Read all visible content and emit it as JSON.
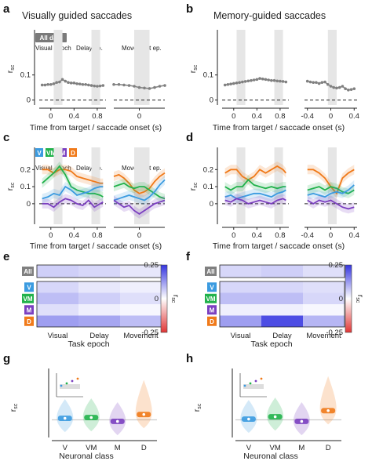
{
  "panels": {
    "a": {
      "letter": "a",
      "title": "Visually guided saccades"
    },
    "b": {
      "letter": "b",
      "title": "Memory-guided saccades"
    },
    "c": {
      "letter": "c"
    },
    "d": {
      "letter": "d"
    },
    "e": {
      "letter": "e"
    },
    "f": {
      "letter": "f"
    },
    "g": {
      "letter": "g"
    },
    "h": {
      "letter": "h"
    }
  },
  "labels": {
    "ylabel_rsc": "r",
    "ylabel_sub": "sc",
    "xlabel_time": "Time from target / saccade onset (s)",
    "xlabel_epoch": "Task epoch",
    "xlabel_class": "Neuronal class",
    "all_data": "All data",
    "visual_epoch": "Visual epoch",
    "delay_ep": "Delay ep.",
    "movement_ep": "Movement ep.",
    "colorbar_label": "r",
    "colorbar_sub": "sc",
    "colorbar_ticks": [
      "0.25",
      "0",
      "-0.25"
    ]
  },
  "colors": {
    "V": "#3b9be0",
    "VM": "#22b24c",
    "M": "#7b3fc0",
    "D": "#f07a1a",
    "All": "#808080",
    "epoch_shade": "#e6e6e6",
    "heat_pos": "#3535e0",
    "heat_neg": "#e03535"
  },
  "chart_data": [
    {
      "id": "a",
      "type": "line",
      "title": "Visually guided saccades",
      "xlabel": "Time from target / saccade onset (s)",
      "ylabel": "rsc",
      "ylim": [
        -0.02,
        0.28
      ],
      "target_axis": {
        "ticks": [
          "0",
          "0.4",
          "0.8"
        ],
        "xlim": [
          -0.2,
          0.95
        ]
      },
      "saccade_axis": {
        "ticks": [
          "0"
        ],
        "xlim": [
          -0.25,
          0.25
        ]
      },
      "yticks": [
        "0.1",
        "0"
      ],
      "series": [
        {
          "name": "All data",
          "color": "#808080",
          "target": {
            "x": [
              -0.15,
              -0.1,
              -0.05,
              0,
              0.05,
              0.1,
              0.15,
              0.2,
              0.25,
              0.3,
              0.35,
              0.4,
              0.45,
              0.5,
              0.55,
              0.6,
              0.65,
              0.7,
              0.75,
              0.8,
              0.85,
              0.9
            ],
            "y": [
              0.06,
              0.06,
              0.062,
              0.062,
              0.065,
              0.07,
              0.072,
              0.082,
              0.075,
              0.07,
              0.068,
              0.068,
              0.065,
              0.064,
              0.062,
              0.062,
              0.06,
              0.058,
              0.056,
              0.055,
              0.056,
              0.058
            ]
          },
          "saccade": {
            "x": [
              -0.25,
              -0.2,
              -0.15,
              -0.1,
              -0.05,
              0,
              0.05,
              0.1,
              0.15,
              0.2,
              0.25
            ],
            "y": [
              0.062,
              0.062,
              0.06,
              0.058,
              0.055,
              0.05,
              0.048,
              0.046,
              0.05,
              0.055,
              0.058
            ]
          }
        }
      ]
    },
    {
      "id": "b",
      "type": "line",
      "title": "Memory-guided saccades",
      "xlabel": "Time from target / saccade onset (s)",
      "ylabel": "rsc",
      "ylim": [
        -0.02,
        0.28
      ],
      "target_axis": {
        "ticks": [
          "0",
          "0.4",
          "0.8"
        ],
        "xlim": [
          -0.2,
          0.95
        ]
      },
      "saccade_axis": {
        "ticks": [
          "-0.4",
          "0",
          "0.4"
        ],
        "xlim": [
          -0.45,
          0.45
        ]
      },
      "yticks": [
        "0.1",
        "0"
      ],
      "series": [
        {
          "name": "All data",
          "color": "#808080",
          "target": {
            "x": [
              -0.15,
              -0.1,
              -0.05,
              0,
              0.05,
              0.1,
              0.15,
              0.2,
              0.25,
              0.3,
              0.35,
              0.4,
              0.45,
              0.5,
              0.55,
              0.6,
              0.65,
              0.7,
              0.75,
              0.8,
              0.85,
              0.9
            ],
            "y": [
              0.06,
              0.062,
              0.064,
              0.066,
              0.068,
              0.07,
              0.072,
              0.074,
              0.076,
              0.078,
              0.08,
              0.082,
              0.086,
              0.084,
              0.082,
              0.08,
              0.078,
              0.078,
              0.076,
              0.075,
              0.074,
              0.072
            ]
          },
          "saccade": {
            "x": [
              -0.4,
              -0.35,
              -0.3,
              -0.25,
              -0.2,
              -0.15,
              -0.1,
              -0.05,
              0,
              0.05,
              0.1,
              0.15,
              0.2,
              0.25,
              0.3,
              0.35,
              0.4
            ],
            "y": [
              0.075,
              0.072,
              0.07,
              0.07,
              0.066,
              0.07,
              0.072,
              0.062,
              0.055,
              0.05,
              0.048,
              0.05,
              0.055,
              0.045,
              0.04,
              0.042,
              0.045
            ]
          }
        }
      ]
    },
    {
      "id": "c",
      "type": "line",
      "ylabel": "rsc",
      "xlabel": "Time from target / saccade onset (s)",
      "ylim": [
        -0.12,
        0.33
      ],
      "target_axis": {
        "ticks": [
          "0",
          "0.4",
          "0.8"
        ],
        "xlim": [
          -0.2,
          0.95
        ]
      },
      "saccade_axis": {
        "ticks": [
          "0"
        ],
        "xlim": [
          -0.25,
          0.25
        ]
      },
      "yticks": [
        "0.2",
        "0.1",
        "0"
      ],
      "series": [
        {
          "name": "D",
          "color": "#f07a1a",
          "target": {
            "x": [
              -0.15,
              -0.05,
              0.05,
              0.15,
              0.25,
              0.35,
              0.45,
              0.55,
              0.65,
              0.75,
              0.85,
              0.9
            ],
            "y": [
              0.2,
              0.2,
              0.18,
              0.2,
              0.2,
              0.19,
              0.16,
              0.15,
              0.14,
              0.13,
              0.12,
              0.12
            ]
          },
          "saccade": {
            "x": [
              -0.25,
              -0.2,
              -0.15,
              -0.1,
              -0.05,
              0,
              0.05,
              0.1,
              0.15,
              0.2,
              0.25
            ],
            "y": [
              0.16,
              0.17,
              0.15,
              0.12,
              0.08,
              0.06,
              0.07,
              0.09,
              0.13,
              0.16,
              0.18
            ]
          }
        },
        {
          "name": "VM",
          "color": "#22b24c",
          "target": {
            "x": [
              -0.15,
              -0.05,
              0.05,
              0.15,
              0.25,
              0.35,
              0.45,
              0.55,
              0.65,
              0.75,
              0.85,
              0.9
            ],
            "y": [
              0.12,
              0.15,
              0.18,
              0.22,
              0.17,
              0.1,
              0.08,
              0.07,
              0.06,
              0.06,
              0.05,
              0.04
            ]
          },
          "saccade": {
            "x": [
              -0.25,
              -0.2,
              -0.15,
              -0.1,
              -0.05,
              0,
              0.05,
              0.1,
              0.15,
              0.2,
              0.25
            ],
            "y": [
              0.1,
              0.11,
              0.12,
              0.1,
              0.09,
              0.1,
              0.1,
              0.08,
              0.06,
              0.04,
              0.03
            ]
          }
        },
        {
          "name": "V",
          "color": "#3b9be0",
          "target": {
            "x": [
              -0.15,
              -0.05,
              0.05,
              0.15,
              0.25,
              0.35,
              0.45,
              0.55,
              0.65,
              0.75,
              0.85,
              0.9
            ],
            "y": [
              0.03,
              0.04,
              0.06,
              0.05,
              0.1,
              0.08,
              0.05,
              0.06,
              0.07,
              0.09,
              0.1,
              0.1
            ]
          },
          "saccade": {
            "x": [
              -0.25,
              -0.2,
              -0.15,
              -0.1,
              -0.05,
              0,
              0.05,
              0.1,
              0.15,
              0.2,
              0.25
            ],
            "y": [
              0.02,
              0.03,
              0.04,
              0.05,
              0.04,
              0.03,
              0.02,
              0.04,
              0.07,
              0.11,
              0.14
            ]
          }
        },
        {
          "name": "M",
          "color": "#7b3fc0",
          "target": {
            "x": [
              -0.15,
              -0.05,
              0.05,
              0.15,
              0.25,
              0.35,
              0.45,
              0.55,
              0.65,
              0.75,
              0.85,
              0.9
            ],
            "y": [
              0.0,
              0.0,
              -0.02,
              0.01,
              0.03,
              0.02,
              0.0,
              -0.01,
              0.02,
              -0.02,
              0.0,
              0.01
            ]
          },
          "saccade": {
            "x": [
              -0.25,
              -0.2,
              -0.15,
              -0.1,
              -0.05,
              0,
              0.05,
              0.1,
              0.15,
              0.2,
              0.25
            ],
            "y": [
              0.02,
              0.0,
              -0.02,
              -0.01,
              -0.04,
              -0.06,
              -0.04,
              -0.02,
              0.0,
              0.01,
              0.02
            ]
          }
        }
      ]
    },
    {
      "id": "d",
      "type": "line",
      "ylabel": "rsc",
      "xlabel": "Time from target / saccade onset (s)",
      "ylim": [
        -0.12,
        0.33
      ],
      "target_axis": {
        "ticks": [
          "0",
          "0.4",
          "0.8"
        ],
        "xlim": [
          -0.2,
          0.95
        ]
      },
      "saccade_axis": {
        "ticks": [
          "-0.4",
          "0",
          "0.4"
        ],
        "xlim": [
          -0.45,
          0.45
        ]
      },
      "yticks": [
        "0.2",
        "0.1",
        "0"
      ],
      "series": [
        {
          "name": "D",
          "color": "#f07a1a",
          "target": {
            "x": [
              -0.15,
              -0.05,
              0.05,
              0.15,
              0.25,
              0.35,
              0.45,
              0.55,
              0.65,
              0.75,
              0.85,
              0.9
            ],
            "y": [
              0.18,
              0.2,
              0.2,
              0.16,
              0.14,
              0.16,
              0.2,
              0.18,
              0.2,
              0.22,
              0.2,
              0.18
            ]
          },
          "saccade": {
            "x": [
              -0.4,
              -0.3,
              -0.2,
              -0.1,
              0,
              0.1,
              0.2,
              0.3,
              0.4
            ],
            "y": [
              0.2,
              0.2,
              0.18,
              0.15,
              0.1,
              0.06,
              0.15,
              0.18,
              0.2
            ]
          }
        },
        {
          "name": "VM",
          "color": "#22b24c",
          "target": {
            "x": [
              -0.15,
              -0.05,
              0.05,
              0.15,
              0.25,
              0.35,
              0.45,
              0.55,
              0.65,
              0.75,
              0.85,
              0.9
            ],
            "y": [
              0.1,
              0.08,
              0.1,
              0.1,
              0.14,
              0.11,
              0.1,
              0.09,
              0.1,
              0.09,
              0.1,
              0.1
            ]
          },
          "saccade": {
            "x": [
              -0.4,
              -0.3,
              -0.2,
              -0.1,
              0,
              0.1,
              0.2,
              0.3,
              0.4
            ],
            "y": [
              0.08,
              0.09,
              0.1,
              0.08,
              0.1,
              0.09,
              0.07,
              0.06,
              0.08
            ]
          }
        },
        {
          "name": "V",
          "color": "#3b9be0",
          "target": {
            "x": [
              -0.15,
              -0.05,
              0.05,
              0.15,
              0.25,
              0.35,
              0.45,
              0.55,
              0.65,
              0.75,
              0.85,
              0.9
            ],
            "y": [
              0.04,
              0.05,
              0.03,
              0.04,
              0.05,
              0.06,
              0.06,
              0.05,
              0.04,
              0.06,
              0.07,
              0.08
            ]
          },
          "saccade": {
            "x": [
              -0.4,
              -0.3,
              -0.2,
              -0.1,
              0,
              0.1,
              0.2,
              0.3,
              0.4
            ],
            "y": [
              0.05,
              0.06,
              0.05,
              0.04,
              0.06,
              0.07,
              0.06,
              0.08,
              0.11
            ]
          }
        },
        {
          "name": "M",
          "color": "#7b3fc0",
          "target": {
            "x": [
              -0.15,
              -0.05,
              0.05,
              0.15,
              0.25,
              0.35,
              0.45,
              0.55,
              0.65,
              0.75,
              0.85,
              0.9
            ],
            "y": [
              0.02,
              0.01,
              0.03,
              0.02,
              0.0,
              0.01,
              0.02,
              0.01,
              0.0,
              0.02,
              0.03,
              0.02
            ]
          },
          "saccade": {
            "x": [
              -0.4,
              -0.3,
              -0.2,
              -0.1,
              0,
              0.1,
              0.2,
              0.3,
              0.4
            ],
            "y": [
              0.02,
              0.0,
              0.02,
              0.01,
              0.02,
              0.0,
              -0.02,
              -0.03,
              -0.02
            ]
          }
        }
      ]
    },
    {
      "id": "e",
      "type": "heatmap",
      "xlabel": "Task epoch",
      "columns": [
        "Visual",
        "Delay",
        "Movement"
      ],
      "rows": [
        "All",
        "V",
        "VM",
        "M",
        "D"
      ],
      "colorbar": {
        "range": [
          -0.25,
          0.25
        ],
        "ticks": [
          "0.25",
          "0",
          "-0.25"
        ]
      },
      "values": [
        [
          0.06,
          0.05,
          0.03
        ],
        [
          0.05,
          0.03,
          0.02
        ],
        [
          0.08,
          0.06,
          0.04
        ],
        [
          0.04,
          0.02,
          0.01
        ],
        [
          0.12,
          0.11,
          0.08
        ]
      ]
    },
    {
      "id": "f",
      "type": "heatmap",
      "xlabel": "Task epoch",
      "columns": [
        "Visual",
        "Delay",
        "Movement"
      ],
      "rows": [
        "All",
        "V",
        "VM",
        "M",
        "D"
      ],
      "colorbar": {
        "range": [
          -0.25,
          0.25
        ],
        "ticks": [
          "0.25",
          "0",
          "-0.25"
        ]
      },
      "values": [
        [
          0.05,
          0.06,
          0.04
        ],
        [
          0.05,
          0.05,
          0.04
        ],
        [
          0.08,
          0.08,
          0.05
        ],
        [
          0.02,
          0.02,
          0.01
        ],
        [
          0.12,
          0.22,
          0.09
        ]
      ]
    },
    {
      "id": "g",
      "type": "violin",
      "ylabel": "rsc",
      "xlabel": "Neuronal class",
      "categories": [
        "V",
        "VM",
        "M",
        "D"
      ],
      "median": [
        0.05,
        0.06,
        0.01,
        0.1
      ]
    },
    {
      "id": "h",
      "type": "violin",
      "ylabel": "rsc",
      "xlabel": "Neuronal class",
      "categories": [
        "V",
        "VM",
        "M",
        "D"
      ],
      "median": [
        0.04,
        0.07,
        0.01,
        0.15
      ]
    }
  ]
}
